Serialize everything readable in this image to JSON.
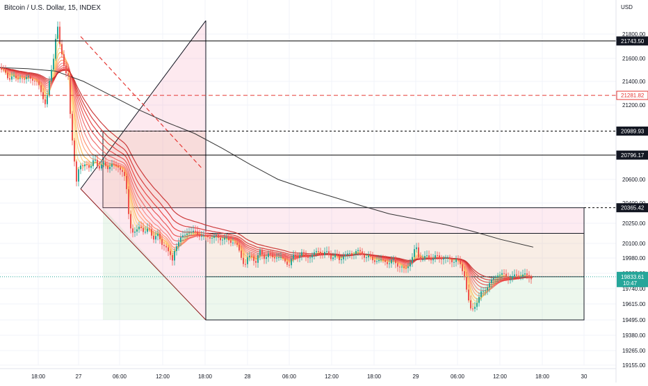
{
  "header": {
    "symbol_title": "Bitcoin / U.S. Dollar, 15, INDEX",
    "currency": "USD"
  },
  "chart_data": {
    "type": "candlestick",
    "title": "Bitcoin / U.S. Dollar, 15, INDEX",
    "ylim": [
      19100,
      21950
    ],
    "y_ticks": [
      21800,
      21600,
      21400,
      21200,
      20600,
      20400,
      20250,
      20100,
      19980,
      19860,
      19740,
      19615,
      19495,
      19380,
      19265,
      19155
    ],
    "x_ticks": [
      "18:00",
      "27",
      "06:00",
      "12:00",
      "18:00",
      "28",
      "06:00",
      "12:00",
      "18:00",
      "29",
      "06:00",
      "12:00",
      "18:00",
      "30"
    ],
    "price_lines": [
      {
        "value": 21743.5,
        "label": "21743.50",
        "style": "solid",
        "color": "#000000"
      },
      {
        "value": 21281.82,
        "label": "21281.82",
        "style": "dashed",
        "color": "#e53935"
      },
      {
        "value": 20989.93,
        "label": "20989.93",
        "style": "dashed",
        "color": "#000000"
      },
      {
        "value": 20796.17,
        "label": "20796.17",
        "style": "solid",
        "color": "#000000"
      },
      {
        "value": 20365.42,
        "label": "20365.42",
        "style": "dashed",
        "color": "#000000"
      }
    ],
    "last_price": {
      "value": 19833.61,
      "label": "19833.61",
      "countdown": "10:47",
      "color": "#26a69a"
    },
    "price_series": [
      [
        0,
        21520
      ],
      [
        6,
        21480
      ],
      [
        12,
        21420
      ],
      [
        18,
        21460
      ],
      [
        24,
        21400
      ],
      [
        30,
        21450
      ],
      [
        36,
        21410
      ],
      [
        42,
        21440
      ],
      [
        48,
        21420
      ],
      [
        54,
        21380
      ],
      [
        60,
        21300
      ],
      [
        66,
        21200
      ],
      [
        70,
        21350
      ],
      [
        74,
        21500
      ],
      [
        78,
        21650
      ],
      [
        82,
        21900
      ],
      [
        86,
        21700
      ],
      [
        90,
        21600
      ],
      [
        94,
        21500
      ],
      [
        98,
        21450
      ],
      [
        102,
        21000
      ],
      [
        106,
        20800
      ],
      [
        110,
        20600
      ],
      [
        114,
        20720
      ],
      [
        118,
        20680
      ],
      [
        124,
        20740
      ],
      [
        130,
        20690
      ],
      [
        136,
        20760
      ],
      [
        142,
        20700
      ],
      [
        148,
        20730
      ],
      [
        154,
        20680
      ],
      [
        160,
        20740
      ],
      [
        166,
        20690
      ],
      [
        172,
        20700
      ],
      [
        178,
        20660
      ],
      [
        182,
        20500
      ],
      [
        186,
        20250
      ],
      [
        190,
        20200
      ],
      [
        196,
        20180
      ],
      [
        202,
        20230
      ],
      [
        208,
        20190
      ],
      [
        214,
        20200
      ],
      [
        220,
        20140
      ],
      [
        226,
        20180
      ],
      [
        232,
        20080
      ],
      [
        238,
        20100
      ],
      [
        244,
        20000
      ],
      [
        248,
        19950
      ],
      [
        252,
        20080
      ],
      [
        258,
        20120
      ],
      [
        264,
        20150
      ],
      [
        270,
        20200
      ],
      [
        276,
        20170
      ],
      [
        282,
        20190
      ],
      [
        288,
        20160
      ],
      [
        294,
        20140
      ],
      [
        300,
        20160
      ],
      [
        306,
        20140
      ],
      [
        312,
        20150
      ],
      [
        318,
        20140
      ],
      [
        324,
        20130
      ],
      [
        330,
        20120
      ],
      [
        336,
        20120
      ],
      [
        342,
        20060
      ],
      [
        348,
        19980
      ],
      [
        352,
        19920
      ],
      [
        356,
        19970
      ],
      [
        362,
        20000
      ],
      [
        368,
        19950
      ],
      [
        374,
        20030
      ],
      [
        380,
        19990
      ],
      [
        386,
        20010
      ],
      [
        392,
        19980
      ],
      [
        398,
        20000
      ],
      [
        404,
        19970
      ],
      [
        410,
        19960
      ],
      [
        416,
        19930
      ],
      [
        422,
        19990
      ],
      [
        428,
        20000
      ],
      [
        434,
        20020
      ],
      [
        440,
        19990
      ],
      [
        446,
        20000
      ],
      [
        452,
        20010
      ],
      [
        458,
        20040
      ],
      [
        464,
        20010
      ],
      [
        470,
        20020
      ],
      [
        476,
        19990
      ],
      [
        482,
        20000
      ],
      [
        488,
        19960
      ],
      [
        494,
        20010
      ],
      [
        500,
        20000
      ],
      [
        506,
        20020
      ],
      [
        512,
        20040
      ],
      [
        518,
        20020
      ],
      [
        524,
        20000
      ],
      [
        530,
        19990
      ],
      [
        536,
        19960
      ],
      [
        542,
        19970
      ],
      [
        548,
        19950
      ],
      [
        554,
        19960
      ],
      [
        560,
        19940
      ],
      [
        566,
        19960
      ],
      [
        572,
        19930
      ],
      [
        578,
        19900
      ],
      [
        582,
        19880
      ],
      [
        588,
        19940
      ],
      [
        594,
        19990
      ],
      [
        598,
        20080
      ],
      [
        602,
        20000
      ],
      [
        608,
        19970
      ],
      [
        614,
        19990
      ],
      [
        620,
        19980
      ],
      [
        626,
        19990
      ],
      [
        632,
        19980
      ],
      [
        638,
        19990
      ],
      [
        644,
        19970
      ],
      [
        650,
        19960
      ],
      [
        656,
        19970
      ],
      [
        662,
        19920
      ],
      [
        668,
        19850
      ],
      [
        672,
        19700
      ],
      [
        676,
        19560
      ],
      [
        680,
        19580
      ],
      [
        684,
        19620
      ],
      [
        688,
        19650
      ],
      [
        692,
        19700
      ],
      [
        696,
        19720
      ],
      [
        700,
        19760
      ],
      [
        704,
        19780
      ],
      [
        708,
        19800
      ],
      [
        712,
        19830
      ],
      [
        716,
        19860
      ],
      [
        720,
        19850
      ],
      [
        726,
        19840
      ],
      [
        732,
        19820
      ],
      [
        738,
        19830
      ],
      [
        744,
        19840
      ],
      [
        750,
        19850
      ],
      [
        756,
        19840
      ],
      [
        762,
        19830
      ],
      [
        767,
        19833
      ]
    ],
    "slow_ma": [
      [
        0,
        21520
      ],
      [
        40,
        21510
      ],
      [
        80,
        21490
      ],
      [
        120,
        21400
      ],
      [
        160,
        21280
      ],
      [
        200,
        21160
      ],
      [
        240,
        21060
      ],
      [
        280,
        20970
      ],
      [
        320,
        20850
      ],
      [
        360,
        20720
      ],
      [
        400,
        20600
      ],
      [
        440,
        20520
      ],
      [
        480,
        20450
      ],
      [
        520,
        20380
      ],
      [
        560,
        20320
      ],
      [
        600,
        20280
      ],
      [
        640,
        20240
      ],
      [
        680,
        20190
      ],
      [
        720,
        20130
      ],
      [
        767,
        20070
      ]
    ],
    "drawings": {
      "upper_zone": {
        "x0": 148,
        "x1": 296,
        "y0": 20989.93,
        "y1": 20365.42
      },
      "lower_zone": {
        "x0": 296,
        "x1": 840,
        "y0": 20365.42,
        "y1": 19495
      },
      "long_position_split": 19833.61,
      "upper_band_split": 20175,
      "trend_triangle": {
        "apex_top": 21900,
        "apex_bottom": 19495
      }
    }
  }
}
